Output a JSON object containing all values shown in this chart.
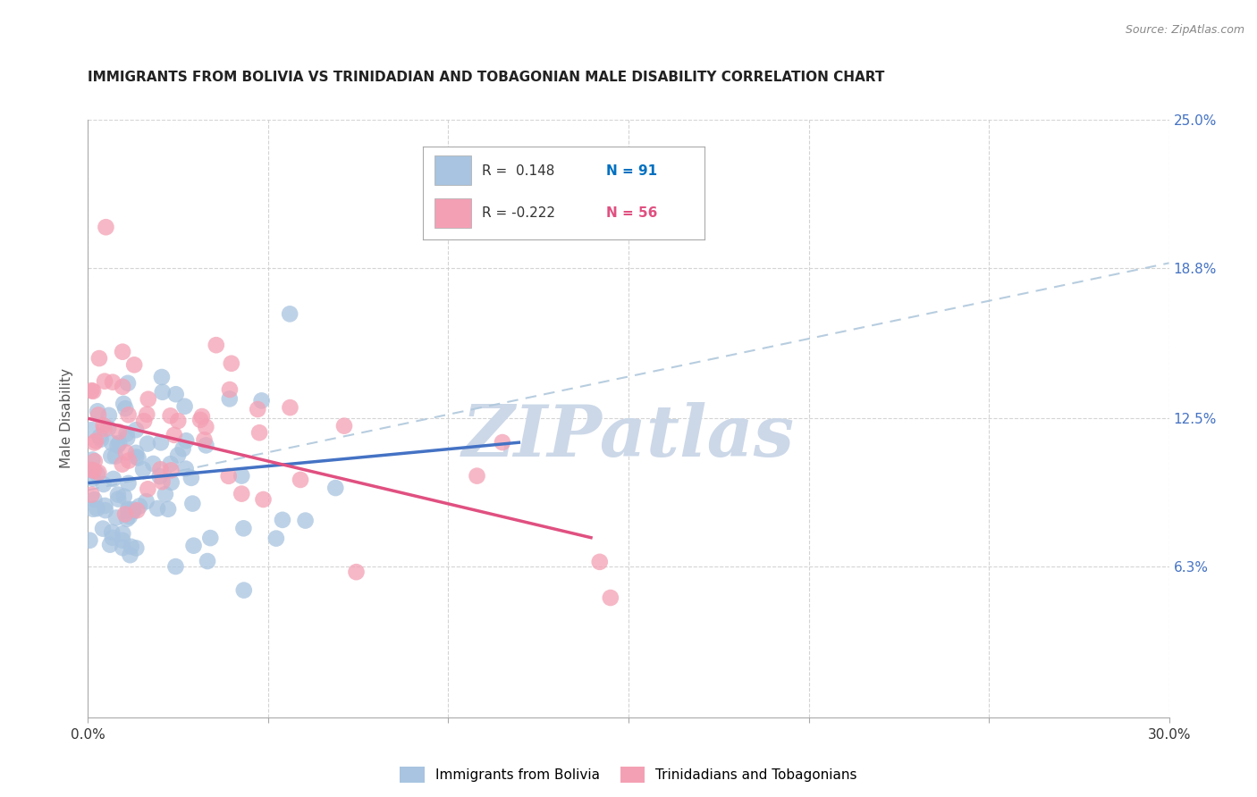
{
  "title": "IMMIGRANTS FROM BOLIVIA VS TRINIDADIAN AND TOBAGONIAN MALE DISABILITY CORRELATION CHART",
  "source": "Source: ZipAtlas.com",
  "ylabel": "Male Disability",
  "xlim": [
    0.0,
    30.0
  ],
  "ylim": [
    0.0,
    25.0
  ],
  "yticks_right": [
    6.3,
    12.5,
    18.8,
    25.0
  ],
  "ytick_labels_right": [
    "6.3%",
    "12.5%",
    "18.8%",
    "25.0%"
  ],
  "legend_r1_text": "R =  0.148",
  "legend_n1_text": "N = 91",
  "legend_r2_text": "R = -0.222",
  "legend_n2_text": "N = 56",
  "color_blue": "#a8c4e0",
  "color_pink": "#f4a0b4",
  "color_blue_line": "#4472c4",
  "color_pink_line": "#e05080",
  "color_blue_r": "#0070c0",
  "color_pink_r": "#e05080",
  "color_n_blue": "#0070c0",
  "color_n_pink": "#e05080",
  "watermark": "ZIPatlas",
  "watermark_color": "#ccd8e8",
  "label1": "Immigrants from Bolivia",
  "label2": "Trinidadians and Tobagonians",
  "blue_line_x0": 0.0,
  "blue_line_y0": 9.8,
  "blue_line_x1": 12.0,
  "blue_line_y1": 11.5,
  "pink_line_x0": 0.0,
  "pink_line_y0": 12.5,
  "pink_line_x1": 14.0,
  "pink_line_y1": 7.5,
  "dash_line_x0": 0.0,
  "dash_line_y0": 9.5,
  "dash_line_x1": 30.0,
  "dash_line_y1": 19.0
}
